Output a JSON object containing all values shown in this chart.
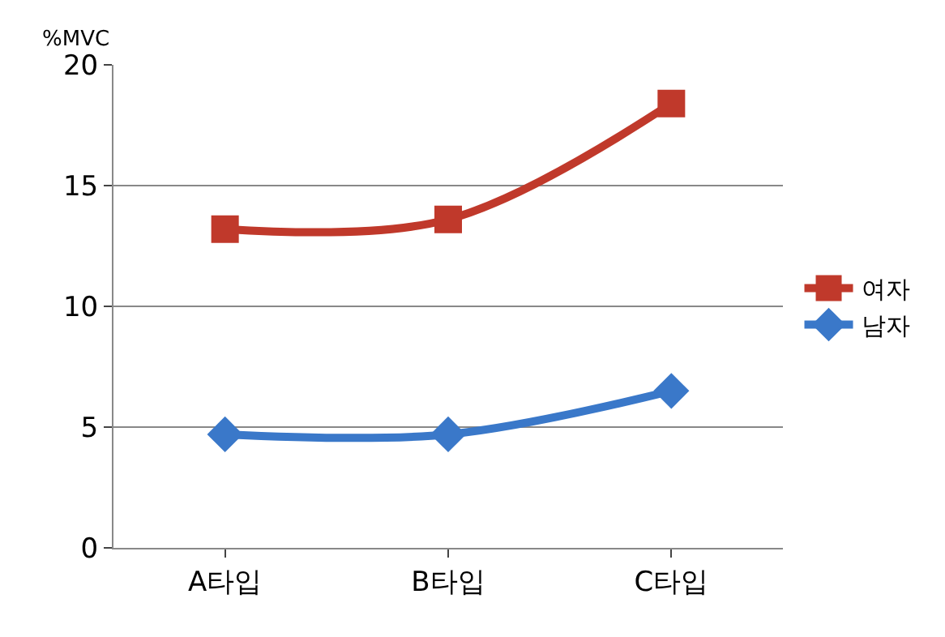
{
  "chart_data": {
    "type": "line",
    "ylabel": "%MVC",
    "categories": [
      "A타입",
      "B타입",
      "C타입"
    ],
    "series": [
      {
        "name": "여자",
        "color": "#c0392b",
        "marker": "square",
        "values": [
          13.2,
          13.6,
          18.4
        ]
      },
      {
        "name": "남자",
        "color": "#3a78c9",
        "marker": "diamond",
        "values": [
          4.7,
          4.7,
          6.5
        ]
      }
    ],
    "ylim": [
      0,
      20
    ],
    "yticks": [
      0,
      5,
      10,
      15,
      20
    ],
    "grid": "y",
    "legend": "right"
  }
}
